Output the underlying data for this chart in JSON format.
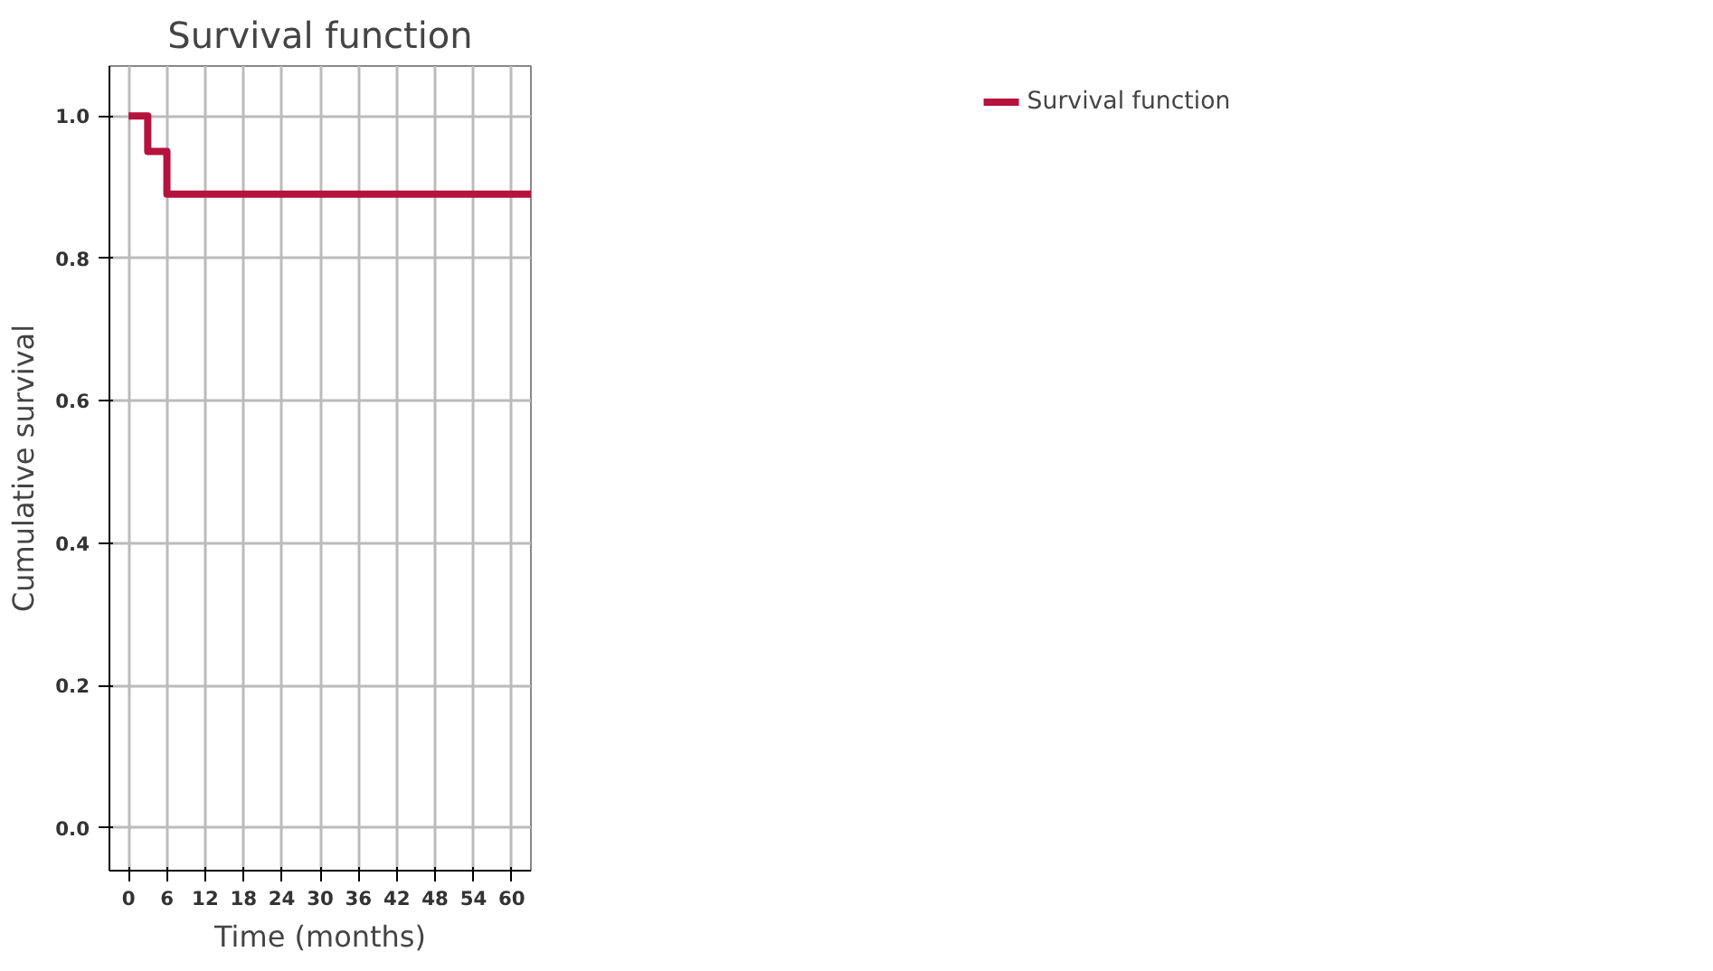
{
  "chart_data": {
    "type": "step",
    "title": "Survival function",
    "xlabel": "Time (months)",
    "ylabel": "Cumulative survival",
    "x": [
      0,
      3,
      6,
      63
    ],
    "series": [
      {
        "name": "Survival function",
        "color": "#b5123e",
        "values": [
          1.0,
          0.95,
          0.89,
          0.89
        ]
      }
    ],
    "xlim": [
      -3,
      63
    ],
    "xticks": [
      0,
      6,
      12,
      18,
      24,
      30,
      36,
      42,
      48,
      54,
      60
    ],
    "ylim": [
      -0.06,
      1.07
    ],
    "yticks": [
      {
        "value": 0,
        "label": "0.0"
      },
      {
        "value": 0.2,
        "label": "0.2"
      },
      {
        "value": 0.4,
        "label": "0.4"
      },
      {
        "value": 0.6,
        "label": "0.6"
      },
      {
        "value": 0.8,
        "label": "0.8"
      },
      {
        "value": 1,
        "label": "1.0"
      }
    ],
    "grid": true,
    "legend": "top right",
    "marker": "none",
    "line_style": "solid"
  }
}
